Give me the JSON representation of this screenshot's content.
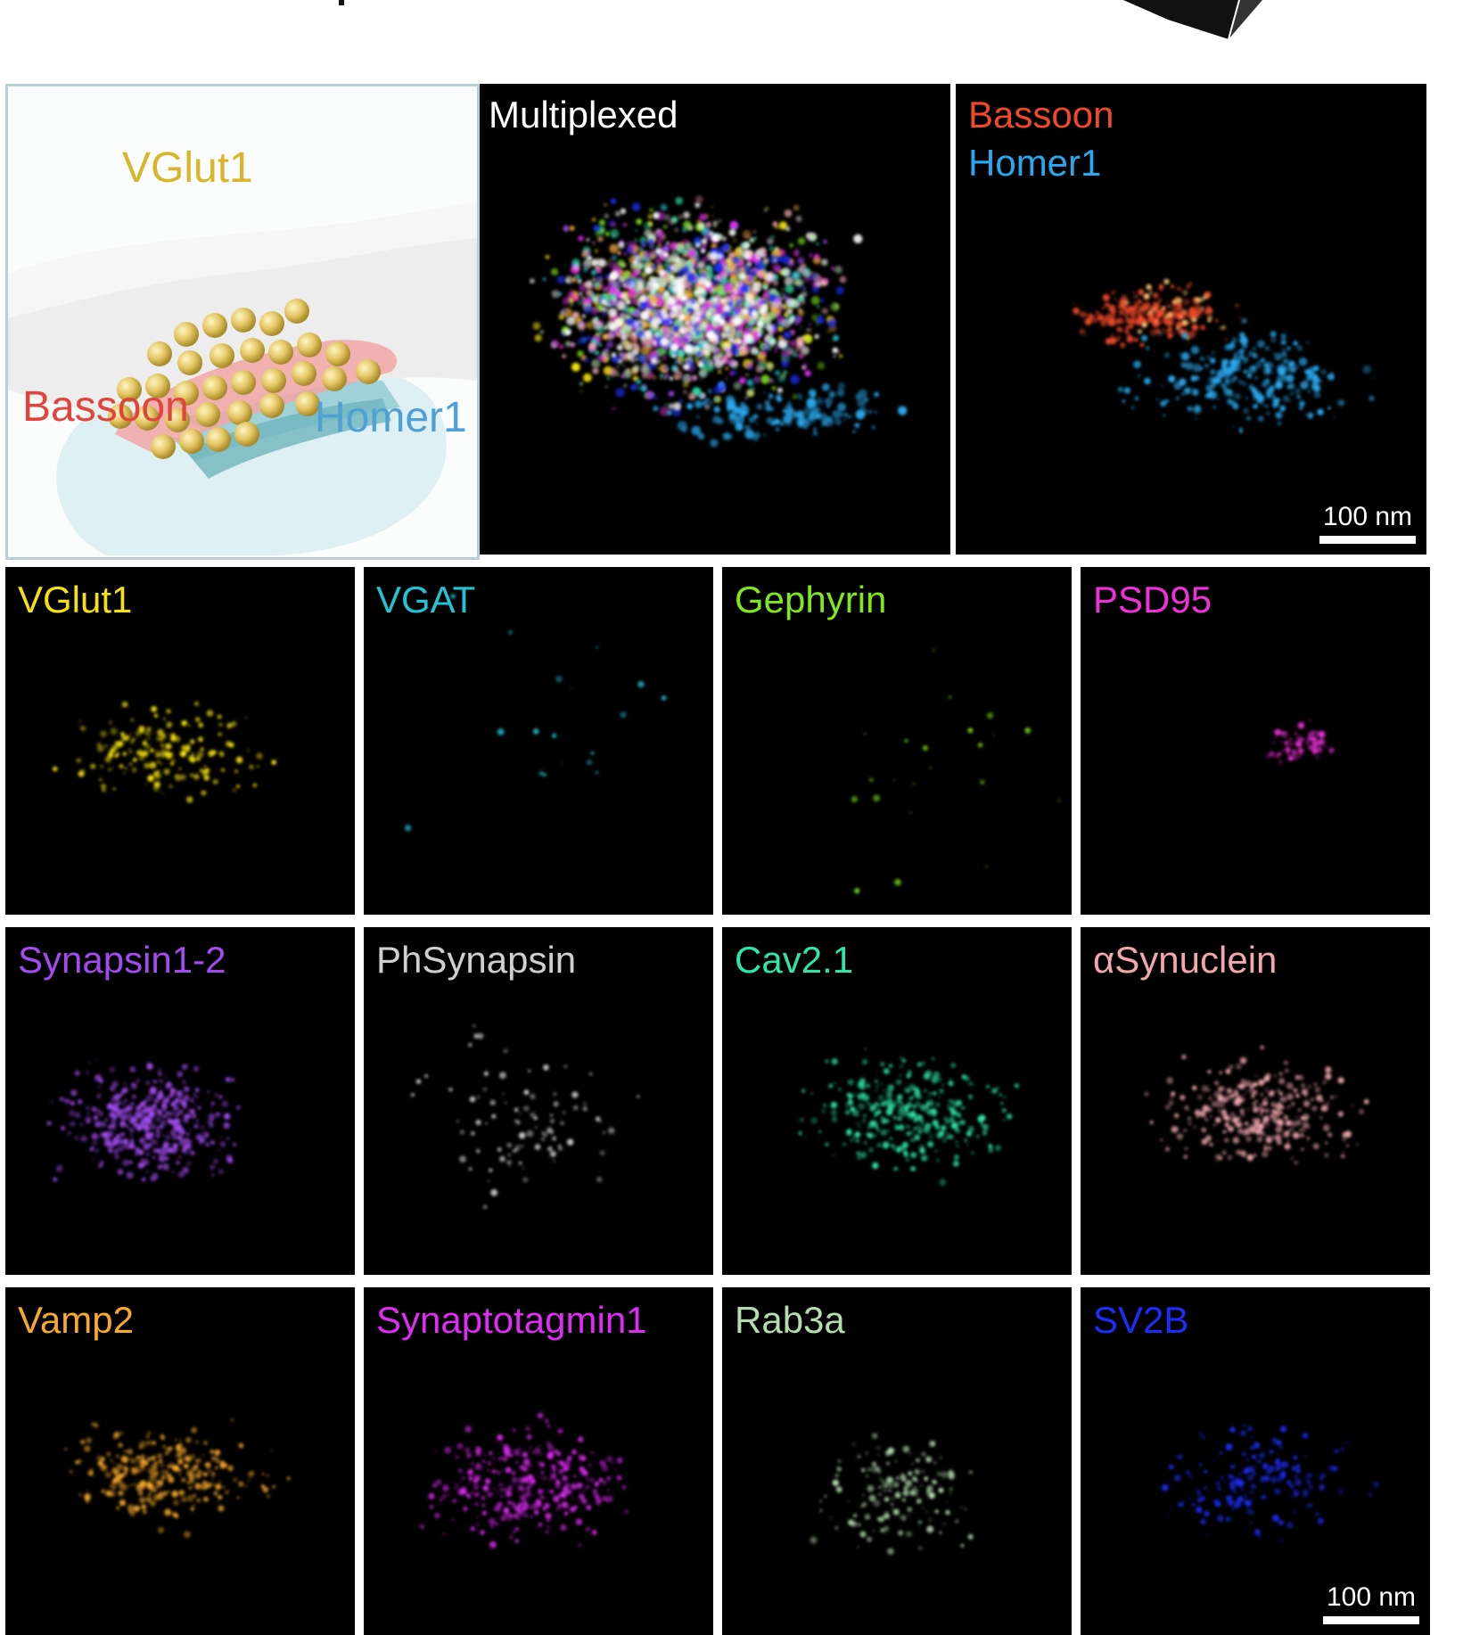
{
  "schematic": {
    "labels": {
      "vglut1": "VGlut1",
      "bassoon": "Bassoon",
      "homer1": "Homer1"
    },
    "colors": {
      "vglut1": "#d8b52a",
      "bassoon": "#e0453c",
      "homer1": "#4ea0d6"
    }
  },
  "top_panels": {
    "multiplexed": {
      "label": "Multiplexed",
      "color": "#ffffff"
    },
    "bassoon_homer": {
      "label1": "Bassoon",
      "color1": "#f0492a",
      "label2": "Homer1",
      "color2": "#2aa8ef"
    },
    "scale_bar": "100 nm"
  },
  "grid": [
    {
      "label": "VGlut1",
      "color": "#f4e10f"
    },
    {
      "label": "VGAT",
      "color": "#22c4d4"
    },
    {
      "label": "Gephyrin",
      "color": "#7fe81d"
    },
    {
      "label": "PSD95",
      "color": "#f030d8"
    },
    {
      "label": "Synapsin1-2",
      "color": "#a24bf0"
    },
    {
      "label": "PhSynapsin",
      "color": "#cfcfcf"
    },
    {
      "label": "Cav2.1",
      "color": "#2fe6a8"
    },
    {
      "label": "αSynuclein",
      "color": "#f2a7ad"
    },
    {
      "label": "Vamp2",
      "color": "#f7a92b"
    },
    {
      "label": "Synaptotagmin1",
      "color": "#de2cf2"
    },
    {
      "label": "Rab3a",
      "color": "#b4dcae"
    },
    {
      "label": "SV2B",
      "color": "#1d2cf7"
    }
  ],
  "grid_scale_bar": "100 nm"
}
